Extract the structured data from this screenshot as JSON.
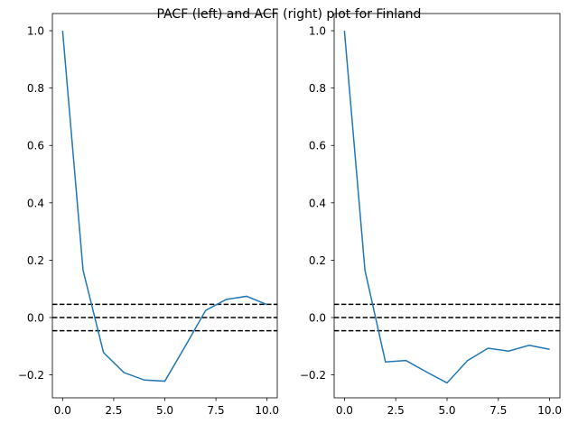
{
  "title": "PACF (left) and ACF (right) plot for Finland",
  "colors": {
    "series": "#1f77b4",
    "reference_lines": "#000000",
    "axes": "#000000"
  },
  "chart_data": [
    {
      "type": "line",
      "name": "PACF",
      "x": [
        0,
        1,
        2,
        3,
        4,
        5,
        6,
        7,
        8,
        9,
        10
      ],
      "y": [
        1.0,
        0.165,
        -0.122,
        -0.192,
        -0.218,
        -0.222,
        -0.1,
        0.025,
        0.063,
        0.074,
        0.045
      ],
      "reference_lines": [
        0.046,
        0.0,
        -0.046
      ],
      "xlim": [
        -0.5,
        10.5
      ],
      "ylim": [
        -0.28,
        1.06
      ],
      "xticks": [
        0,
        2.5,
        5,
        7.5,
        10
      ],
      "xtick_labels": [
        "0.0",
        "2.5",
        "5.0",
        "7.5",
        "10.0"
      ],
      "yticks": [
        -0.2,
        0,
        0.2,
        0.4,
        0.6,
        0.8,
        1.0
      ],
      "ytick_labels": [
        "−0.2",
        "0.0",
        "0.2",
        "0.4",
        "0.6",
        "0.8",
        "1.0"
      ]
    },
    {
      "type": "line",
      "name": "ACF",
      "x": [
        0,
        1,
        2,
        3,
        4,
        5,
        6,
        7,
        8,
        9,
        10
      ],
      "y": [
        1.0,
        0.165,
        -0.155,
        -0.15,
        -0.19,
        -0.228,
        -0.15,
        -0.107,
        -0.117,
        -0.097,
        -0.111
      ],
      "reference_lines": [
        0.046,
        0.0,
        -0.046
      ],
      "xlim": [
        -0.5,
        10.5
      ],
      "ylim": [
        -0.28,
        1.06
      ],
      "xticks": [
        0,
        2.5,
        5,
        7.5,
        10
      ],
      "xtick_labels": [
        "0.0",
        "2.5",
        "5.0",
        "7.5",
        "10.0"
      ],
      "yticks": [
        -0.2,
        0,
        0.2,
        0.4,
        0.6,
        0.8,
        1.0
      ],
      "ytick_labels": [
        "−0.2",
        "0.0",
        "0.2",
        "0.4",
        "0.6",
        "0.8",
        "1.0"
      ]
    }
  ]
}
